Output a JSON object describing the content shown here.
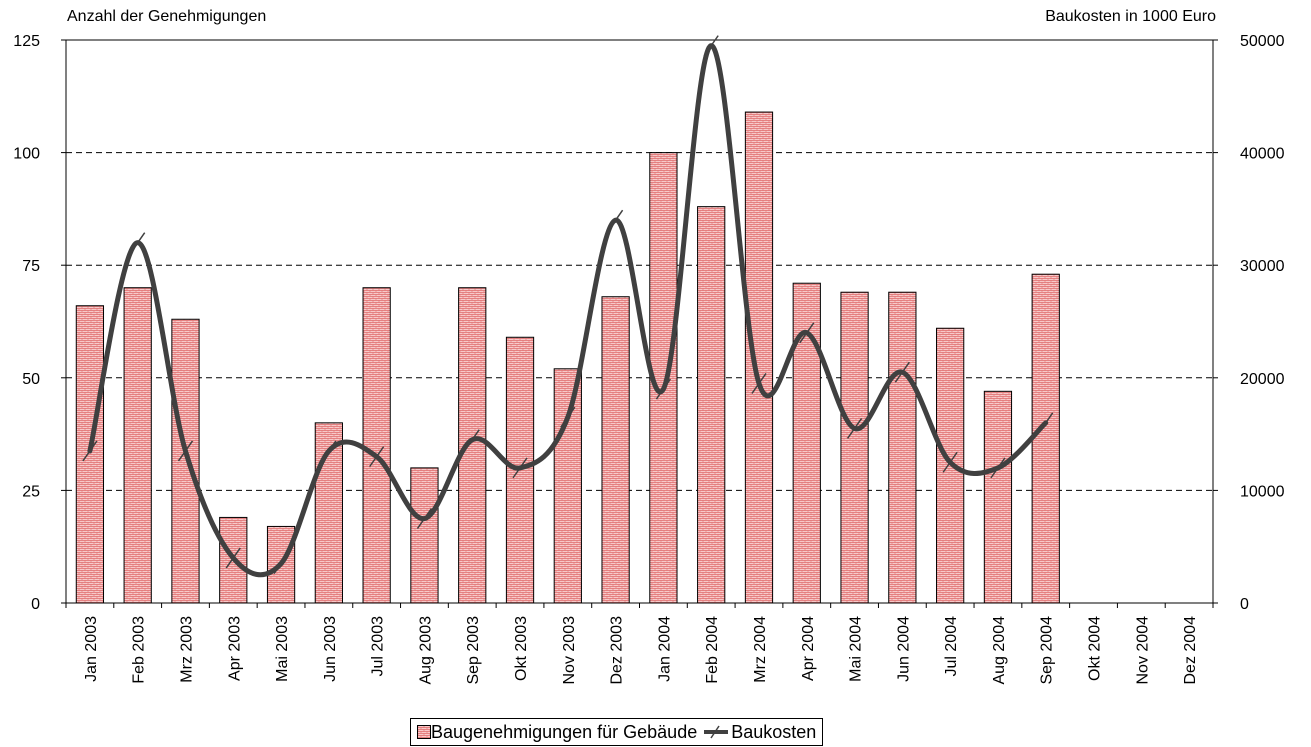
{
  "chart_data": {
    "type": "bar",
    "ylabel_left": "Anzahl der Genehmigungen",
    "ylabel_right": "Baukosten in 1000 Euro",
    "categories": [
      "Jan 2003",
      "Feb 2003",
      "Mrz 2003",
      "Apr 2003",
      "Mai 2003",
      "Jun 2003",
      "Jul 2003",
      "Aug 2003",
      "Sep 2003",
      "Okt 2003",
      "Nov 2003",
      "Dez 2003",
      "Jan 2004",
      "Feb 2004",
      "Mrz 2004",
      "Apr 2004",
      "Mai 2004",
      "Jun 2004",
      "Jul 2004",
      "Aug 2004",
      "Sep 2004",
      "Okt 2004",
      "Nov 2004",
      "Dez 2004"
    ],
    "ylim_left": [
      0,
      125
    ],
    "yticks_left": [
      0,
      25,
      50,
      75,
      100,
      125
    ],
    "ylim_right": [
      0,
      50000
    ],
    "yticks_right": [
      0,
      10000,
      20000,
      30000,
      40000,
      50000
    ],
    "grid": "horizontal dashed",
    "legend_position": "bottom",
    "series": [
      {
        "name": "Baugenehmigungen für Gebäude",
        "type": "bar",
        "axis": "left",
        "color": "#f7c9c9",
        "values": [
          66,
          70,
          63,
          19,
          17,
          40,
          70,
          30,
          70,
          59,
          52,
          68,
          100,
          88,
          109,
          71,
          69,
          69,
          61,
          47,
          73,
          null,
          null,
          null
        ]
      },
      {
        "name": "Baukosten",
        "type": "line",
        "axis": "right",
        "color": "#404040",
        "values": [
          13500,
          32000,
          13500,
          4000,
          3500,
          13500,
          13000,
          7500,
          14500,
          12000,
          16500,
          34000,
          19000,
          49500,
          19500,
          24000,
          15500,
          20500,
          12500,
          12000,
          16000,
          null,
          null,
          null
        ]
      }
    ]
  }
}
